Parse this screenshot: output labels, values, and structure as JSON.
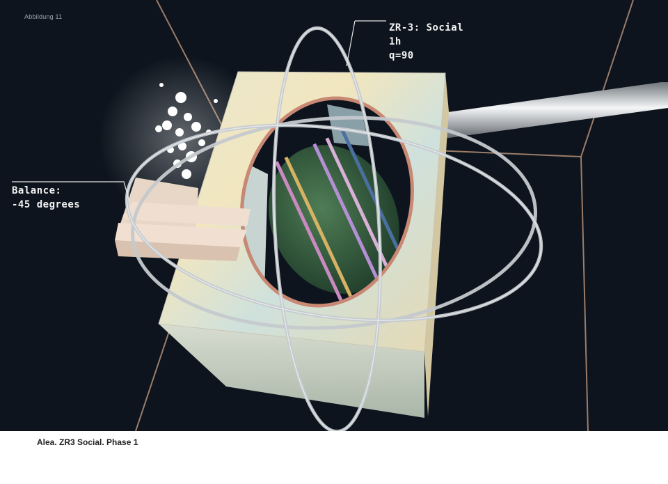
{
  "figure": {
    "label": "Abbildung 11",
    "caption": "Alea. ZR3 Social. Phase 1"
  },
  "annotations": {
    "zr": {
      "line1": "ZR-3: Social",
      "line2": "1h",
      "line3": "q=90"
    },
    "balance": {
      "line1": "Balance:",
      "line2": "-45 degrees"
    }
  },
  "colors": {
    "background": "#0d141d",
    "chrome": "#b9bec4",
    "box_face": "#e8e3c9",
    "thread_lines": "#b58f78"
  }
}
